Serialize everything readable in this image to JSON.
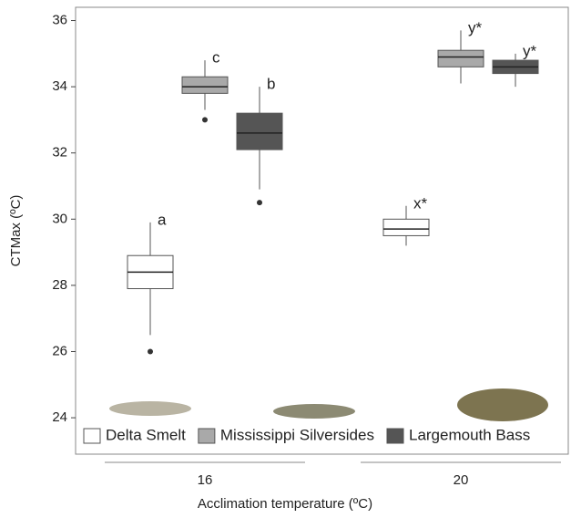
{
  "chart_data": {
    "type": "box",
    "y_label": "CTMax (ºC)",
    "x_label": "Acclimation temperature (ºC)",
    "categories": [
      "16",
      "20"
    ],
    "ylim": [
      22.9,
      36.4
    ],
    "yticks": [
      24,
      26,
      28,
      30,
      32,
      34,
      36
    ],
    "legend": "bottom",
    "series": [
      {
        "name": "Delta Smelt",
        "color": "#ffffff",
        "labels": [
          "a",
          "x*"
        ],
        "boxes": [
          {
            "min": 26.5,
            "q1": 27.9,
            "median": 28.4,
            "q3": 28.9,
            "max": 29.9,
            "outliers": [
              26.0
            ]
          },
          {
            "min": 29.2,
            "q1": 29.5,
            "median": 29.7,
            "q3": 30.0,
            "max": 30.4,
            "outliers": []
          }
        ]
      },
      {
        "name": "Mississippi Silversides",
        "color": "#a9a9a9",
        "labels": [
          "c",
          "y*"
        ],
        "boxes": [
          {
            "min": 33.3,
            "q1": 33.8,
            "median": 34.0,
            "q3": 34.3,
            "max": 34.8,
            "outliers": [
              33.0
            ]
          },
          {
            "min": 34.1,
            "q1": 34.6,
            "median": 34.9,
            "q3": 35.1,
            "max": 35.7,
            "outliers": []
          }
        ]
      },
      {
        "name": "Largemouth Bass",
        "color": "#555555",
        "labels": [
          "b",
          "y*"
        ],
        "boxes": [
          {
            "min": 30.9,
            "q1": 32.1,
            "median": 32.6,
            "q3": 33.2,
            "max": 34.0,
            "outliers": [
              30.5
            ]
          },
          {
            "min": 34.0,
            "q1": 34.4,
            "median": 34.6,
            "q3": 34.8,
            "max": 35.0,
            "outliers": []
          }
        ]
      }
    ]
  }
}
